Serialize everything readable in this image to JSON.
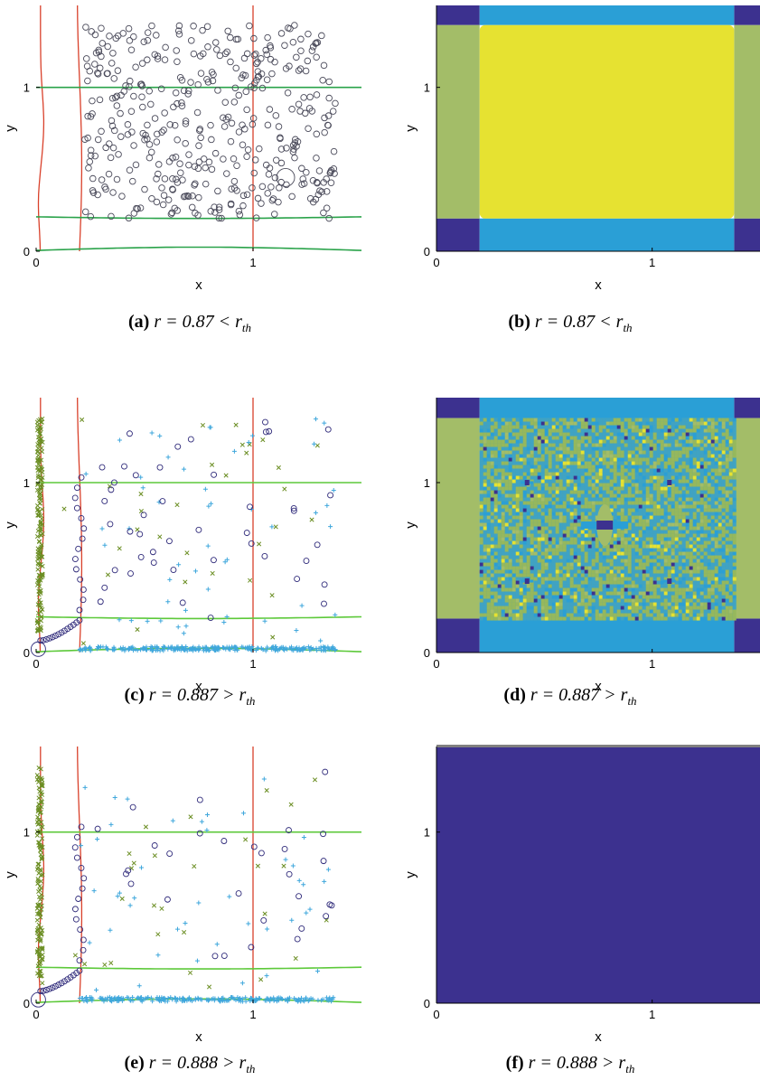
{
  "colors": {
    "red_curve": "#d9412b",
    "green_curve": "#2aa34a",
    "green_curve_light": "#5dc93a",
    "circle_marker": "#2f2a7a",
    "circle_marker_gray": "#4a4a5a",
    "plus_marker": "#3fa7dc",
    "x_marker": "#6b8e23",
    "region_dark": "#3c318f",
    "region_cyan": "#2a9fd6",
    "region_green": "#a3bd68",
    "region_yellow": "#e6e231",
    "noise_a": "#3fa3c4",
    "noise_b": "#96b85c",
    "noise_c": "#5aa0a0"
  },
  "panels": [
    {
      "id": "a",
      "kind": "scatter",
      "caption": {
        "letter": "(a)",
        "formula": "r = 0.87 < r",
        "subscript": "th"
      },
      "xlabel": "x",
      "ylabel": "y",
      "xticks": [
        "0",
        "1"
      ],
      "yticks": [
        "0",
        "1"
      ]
    },
    {
      "id": "b",
      "kind": "map",
      "caption": {
        "letter": "(b)",
        "formula": "r = 0.87 < r",
        "subscript": "th"
      },
      "xlabel": "x",
      "ylabel": "y",
      "xticks": [
        "0",
        "1"
      ],
      "yticks": [
        "0",
        "1"
      ]
    },
    {
      "id": "c",
      "kind": "scatter",
      "caption": {
        "letter": "(c)",
        "formula": "r = 0.887 > r",
        "subscript": "th"
      },
      "xlabel": "x",
      "ylabel": "y",
      "xticks": [
        "0",
        "1"
      ],
      "yticks": [
        "0",
        "1"
      ]
    },
    {
      "id": "d",
      "kind": "map",
      "caption": {
        "letter": "(d)",
        "formula": "r = 0.887 > r",
        "subscript": "th"
      },
      "xlabel": "x",
      "ylabel": "y",
      "xticks": [
        "0",
        "1"
      ],
      "yticks": [
        "0",
        "1"
      ]
    },
    {
      "id": "e",
      "kind": "scatter",
      "caption": {
        "letter": "(e)",
        "formula": "r = 0.888 > r",
        "subscript": "th"
      },
      "xlabel": "x",
      "ylabel": "y",
      "xticks": [
        "0",
        "1"
      ],
      "yticks": [
        "0",
        "1"
      ]
    },
    {
      "id": "f",
      "kind": "map",
      "caption": {
        "letter": "(f)",
        "formula": "r = 0.888 > r",
        "subscript": "th"
      },
      "xlabel": "x",
      "ylabel": "y",
      "xticks": [
        "0",
        "1"
      ],
      "yticks": [
        "0",
        "1"
      ]
    }
  ],
  "chart_data": [
    {
      "panel": "a",
      "type": "scatter",
      "xlim": [
        0,
        1.5
      ],
      "ylim": [
        0,
        1.5
      ],
      "grid": false,
      "vertical_red_lines_x": [
        0,
        0.2,
        1
      ],
      "horizontal_green_lines_y": [
        0,
        0.2,
        1
      ],
      "series": [
        {
          "marker": "circle",
          "count_approx": 420,
          "x_range": [
            0.22,
            1.38
          ],
          "y_range": [
            0.2,
            1.38
          ],
          "highlight_point": [
            1.15,
            0.45
          ]
        }
      ]
    },
    {
      "panel": "b",
      "type": "heatmap",
      "xlim": [
        0,
        1.5
      ],
      "ylim": [
        0,
        1.5
      ],
      "regions": [
        {
          "name": "corners",
          "color": "region_dark",
          "x": [
            [
              0,
              0.2
            ],
            [
              1.35,
              1.5
            ]
          ],
          "y": [
            [
              0,
              0.2
            ],
            [
              1.35,
              1.5
            ]
          ]
        },
        {
          "name": "top-bottom bands",
          "color": "region_cyan",
          "x": [
            0.2,
            1.35
          ]
        },
        {
          "name": "left-right bands",
          "color": "region_green",
          "y": [
            0.2,
            1.35
          ]
        },
        {
          "name": "center",
          "color": "region_yellow",
          "x": [
            0.2,
            1.35
          ],
          "y": [
            0.2,
            1.35
          ]
        }
      ]
    },
    {
      "panel": "c",
      "type": "scatter",
      "xlim": [
        0,
        1.5
      ],
      "ylim": [
        0,
        1.5
      ],
      "grid": false,
      "vertical_red_lines_x": [
        0,
        0.2,
        1
      ],
      "horizontal_green_lines_y": [
        0,
        0.2,
        1
      ],
      "series": [
        {
          "marker": "circle",
          "count_approx": 60
        },
        {
          "marker": "plus",
          "count_approx": 300,
          "note": "most clustered along y ≈ 0.02"
        },
        {
          "marker": "x",
          "count_approx": 200,
          "note": "most clustered along x ≈ 0.02"
        }
      ]
    },
    {
      "panel": "d",
      "type": "heatmap",
      "xlim": [
        0,
        1.5
      ],
      "ylim": [
        0,
        1.5
      ],
      "regions": [
        {
          "name": "corners",
          "color": "region_dark"
        },
        {
          "name": "top-bottom bands",
          "color": "region_cyan"
        },
        {
          "name": "left-right bands",
          "color": "region_green"
        },
        {
          "name": "center",
          "pattern": "noise",
          "features": [
            [
              0.78,
              0.75
            ],
            [
              0.42,
              1.0
            ],
            [
              1.08,
              1.0
            ],
            [
              0.42,
              0.42
            ],
            [
              1.08,
              0.42
            ]
          ]
        }
      ]
    },
    {
      "panel": "e",
      "type": "scatter",
      "xlim": [
        0,
        1.5
      ],
      "ylim": [
        0,
        1.5
      ],
      "grid": false,
      "vertical_red_lines_x": [
        0,
        0.2,
        1
      ],
      "horizontal_green_lines_y": [
        0,
        0.2,
        1
      ],
      "series": [
        {
          "marker": "circle",
          "count_approx": 40
        },
        {
          "marker": "plus",
          "count_approx": 250
        },
        {
          "marker": "x",
          "count_approx": 180
        }
      ]
    },
    {
      "panel": "f",
      "type": "heatmap",
      "xlim": [
        0,
        1.5
      ],
      "ylim": [
        0,
        1.5
      ],
      "regions": [
        {
          "name": "whole domain",
          "color": "region_dark"
        }
      ]
    }
  ]
}
